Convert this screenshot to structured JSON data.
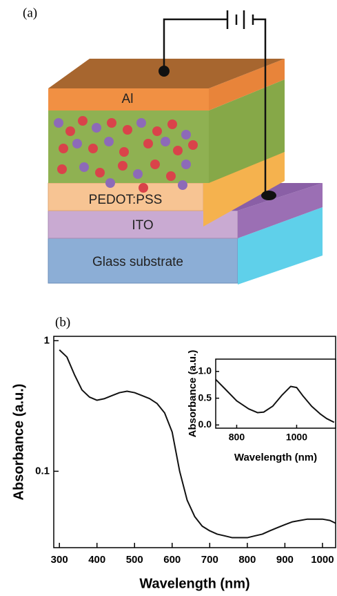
{
  "panel_a": {
    "label": "(a)",
    "layers": [
      "Al",
      "PEDOT:PSS",
      "ITO",
      "Glass substrate"
    ]
  },
  "chart_data": [
    {
      "type": "line",
      "label": "(b)",
      "xlabel": "Wavelength (nm)",
      "ylabel": "Absorbance (a.u.)",
      "log_y": true,
      "xlim": [
        285,
        1035
      ],
      "ylim": [
        0.026,
        1.08
      ],
      "xticks": [
        300,
        400,
        500,
        600,
        700,
        800,
        900,
        1000
      ],
      "yticks": [
        0.1,
        1
      ],
      "x": [
        300,
        320,
        340,
        360,
        380,
        400,
        420,
        440,
        460,
        480,
        500,
        520,
        540,
        560,
        580,
        600,
        620,
        640,
        660,
        680,
        700,
        720,
        740,
        760,
        780,
        800,
        820,
        840,
        860,
        880,
        900,
        920,
        940,
        960,
        980,
        1000,
        1020,
        1035
      ],
      "series": [
        {
          "color": "#111111",
          "values": [
            0.85,
            0.75,
            0.55,
            0.42,
            0.37,
            0.35,
            0.36,
            0.38,
            0.4,
            0.41,
            0.4,
            0.38,
            0.36,
            0.33,
            0.28,
            0.2,
            0.1,
            0.06,
            0.045,
            0.038,
            0.035,
            0.033,
            0.032,
            0.031,
            0.031,
            0.031,
            0.032,
            0.033,
            0.035,
            0.037,
            0.039,
            0.041,
            0.042,
            0.043,
            0.043,
            0.043,
            0.042,
            0.04
          ]
        }
      ]
    },
    {
      "type": "line",
      "xlabel": "Wavelength (nm)",
      "ylabel": "Absorbance (a.u.)",
      "xlim": [
        730,
        1130
      ],
      "ylim": [
        -0.06,
        1.23
      ],
      "xticks": [
        800,
        1000
      ],
      "yticks": [
        {
          "value": 0,
          "label": "0.0"
        },
        0.5,
        {
          "value": 1,
          "label": "1.0"
        }
      ],
      "x": [
        730,
        760,
        800,
        840,
        870,
        890,
        920,
        950,
        980,
        1000,
        1020,
        1050,
        1080,
        1100,
        1125
      ],
      "series": [
        {
          "color": "#111111",
          "values": [
            0.85,
            0.68,
            0.45,
            0.3,
            0.23,
            0.24,
            0.35,
            0.55,
            0.72,
            0.7,
            0.55,
            0.35,
            0.2,
            0.12,
            0.05
          ]
        }
      ]
    }
  ]
}
